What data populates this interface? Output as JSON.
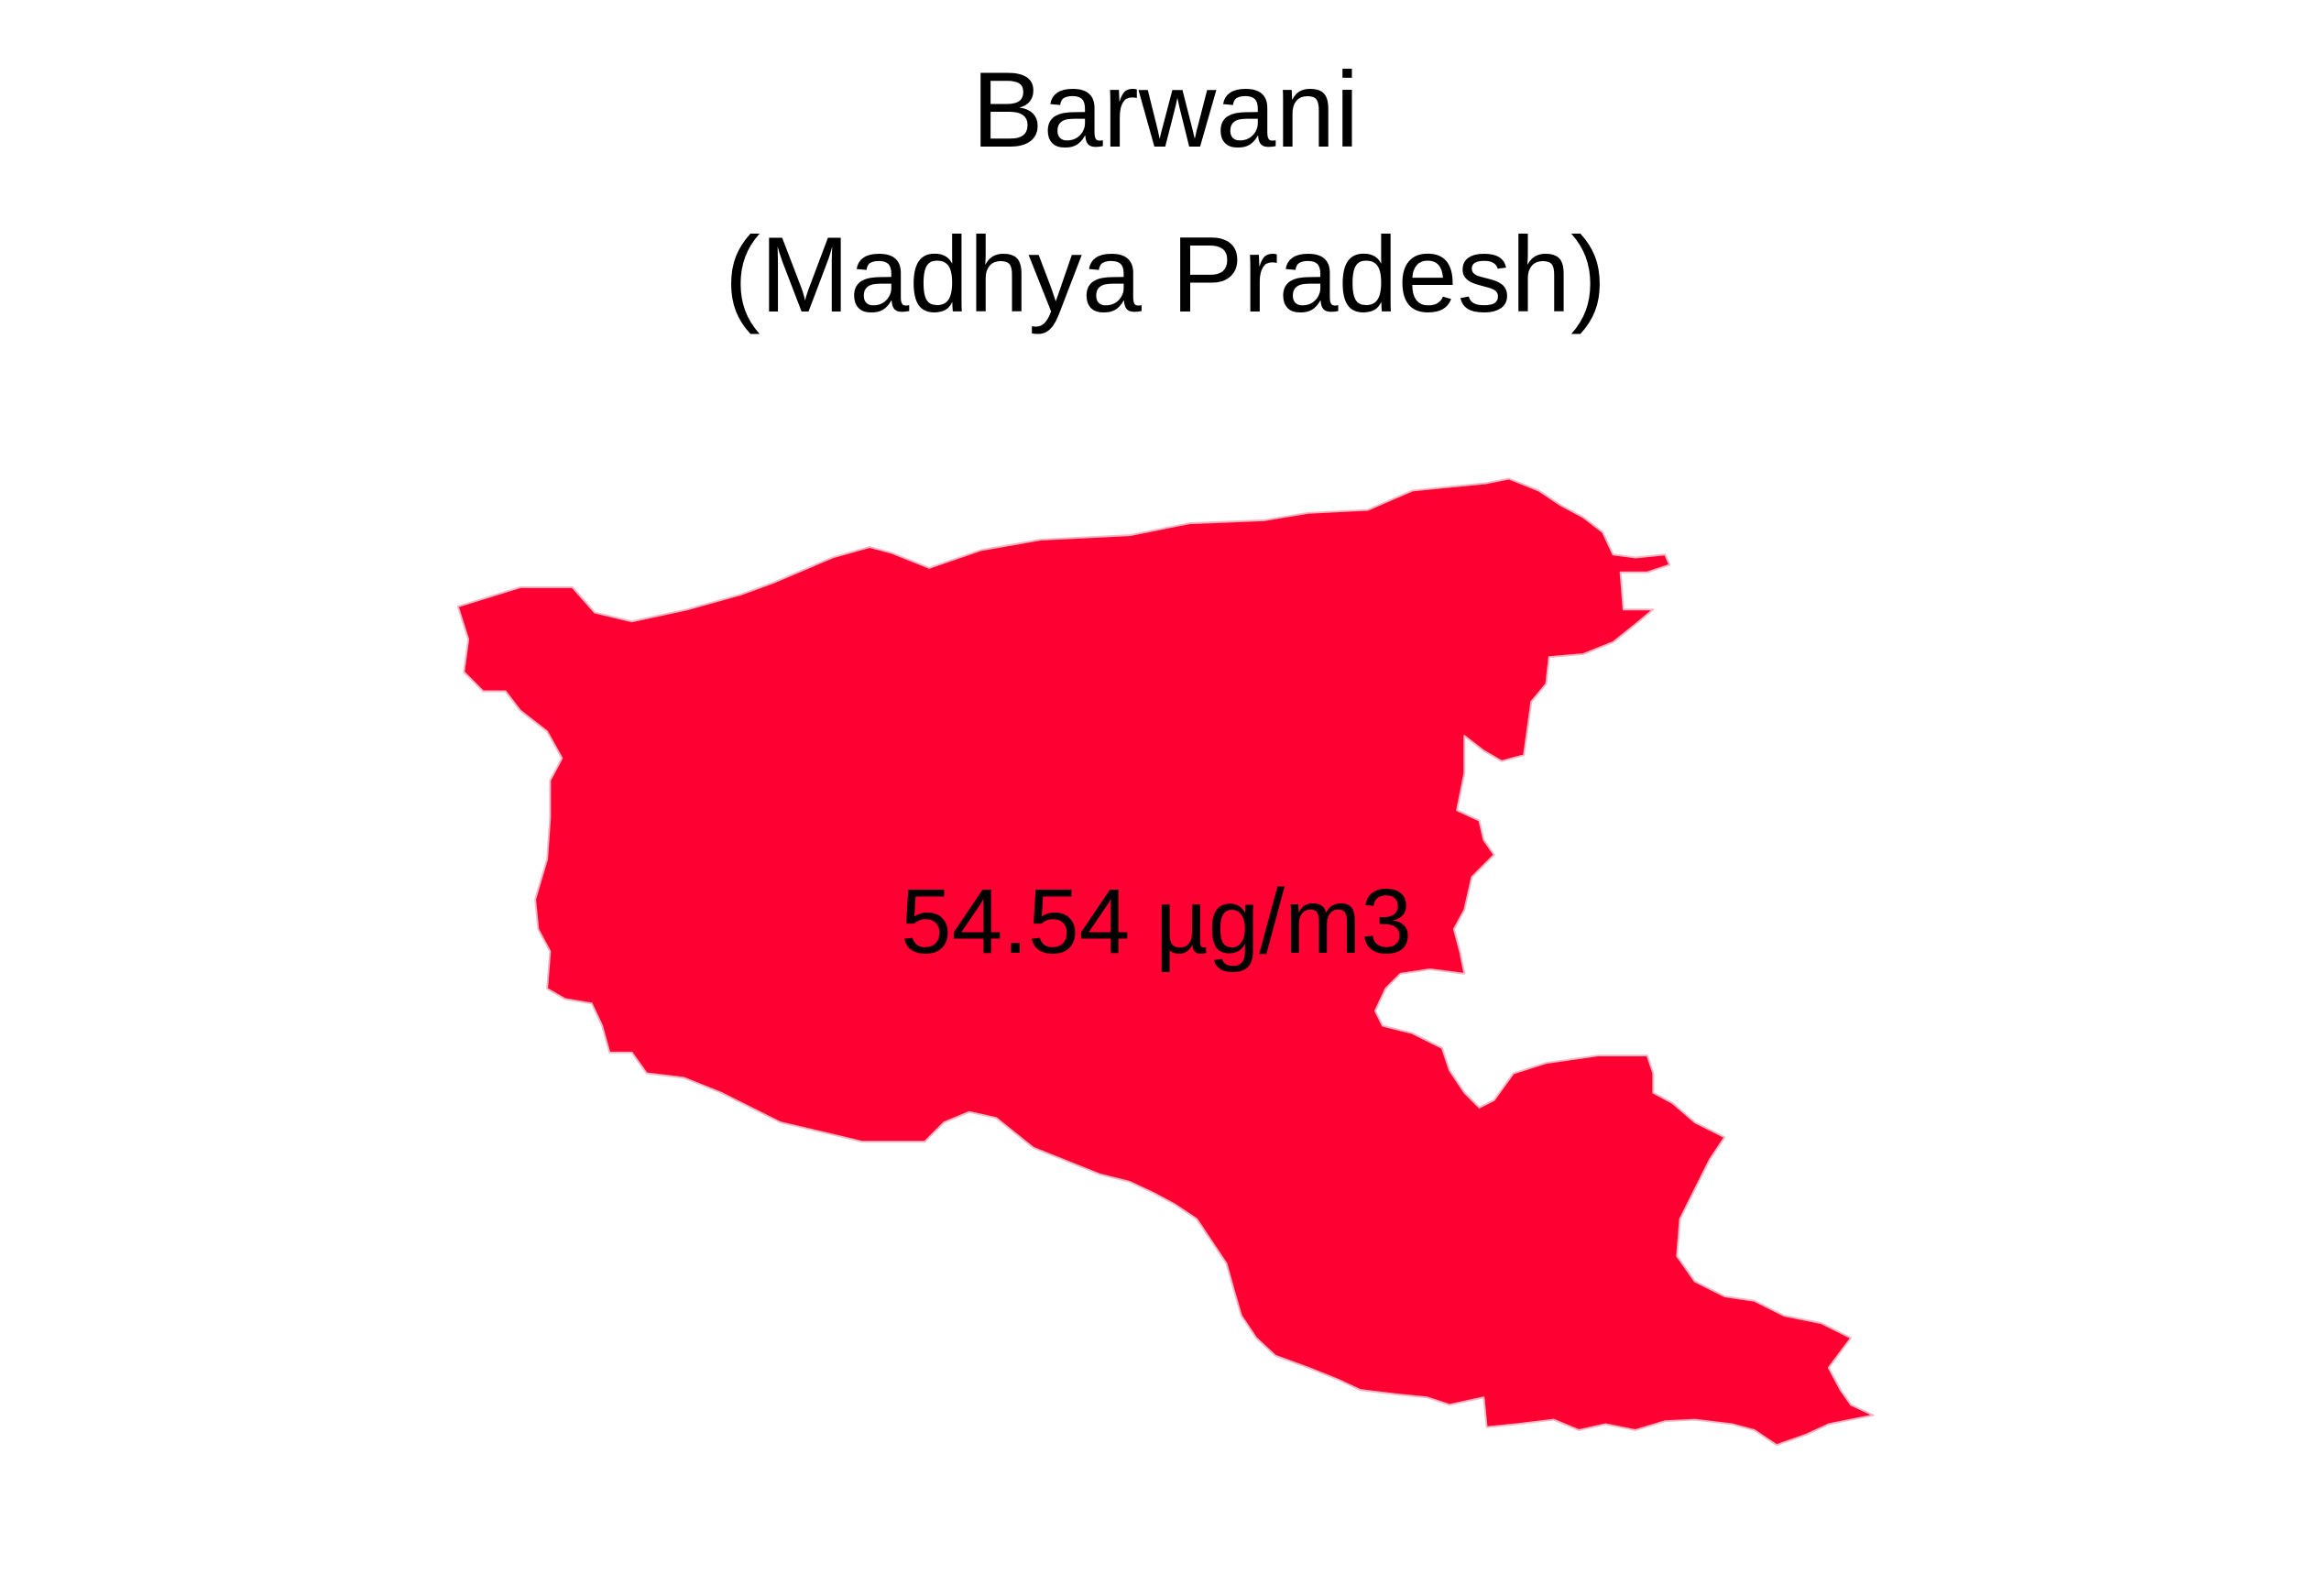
{
  "map": {
    "title_line1": "Barwani",
    "title_line2": "(Madhya Pradesh)",
    "region_value_label": "54.54 µg/m3",
    "region_fill_color": "#FF0033",
    "region_outline_color": "#F4B6C2",
    "background_color": "#FFFFFF"
  }
}
